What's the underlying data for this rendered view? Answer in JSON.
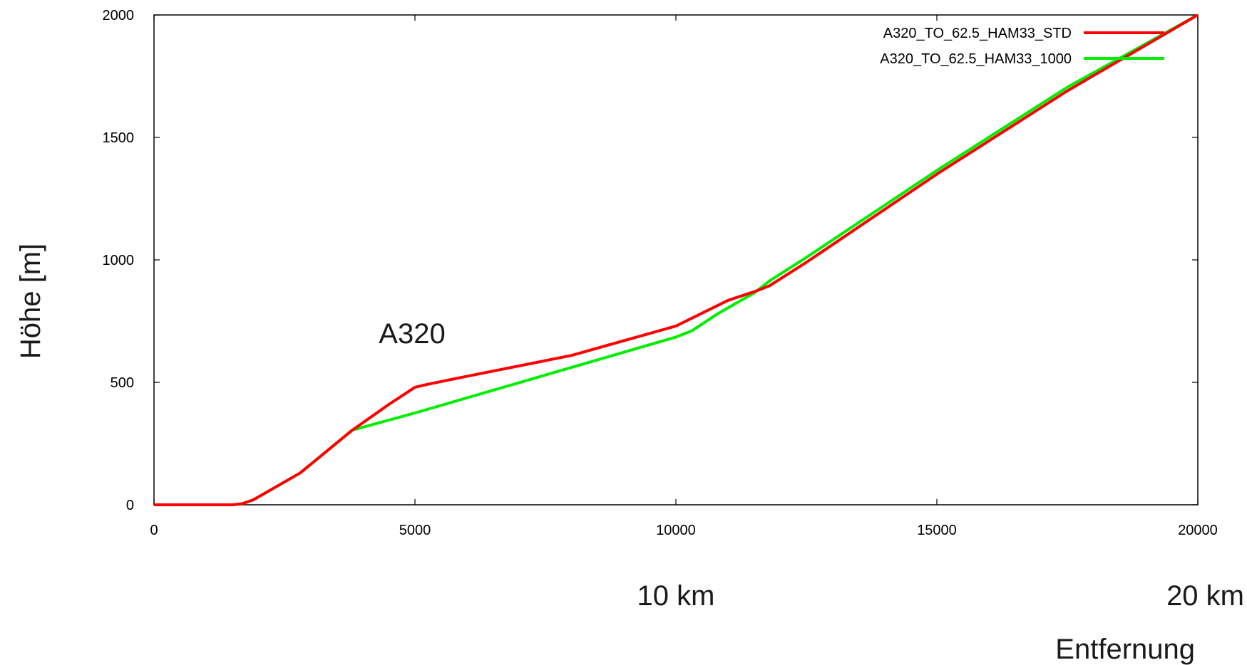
{
  "chart_data": {
    "type": "line",
    "xlabel": "Entfernung",
    "ylabel": "Höhe [m]",
    "xlim": [
      0,
      20000
    ],
    "ylim": [
      0,
      2000
    ],
    "x_ticks": [
      0,
      5000,
      10000,
      15000,
      20000
    ],
    "x_tick_labels": [
      "0",
      "5000",
      "10000",
      "15000",
      "20000"
    ],
    "y_ticks": [
      0,
      500,
      1000,
      1500,
      2000
    ],
    "y_tick_labels": [
      "0",
      "500",
      "1000",
      "1500",
      "2000"
    ],
    "km_labels": [
      {
        "x": 10000,
        "text": "10 km"
      },
      {
        "x": 20000,
        "text": "20 km"
      }
    ],
    "annotation": {
      "x": 5000,
      "y": 700,
      "text": "A320"
    },
    "legend_position": "top-right",
    "series": [
      {
        "name": "A320_TO_62.5_HAM33_STD",
        "color": "#ff0000",
        "points": [
          [
            0,
            0
          ],
          [
            1500,
            0
          ],
          [
            1700,
            5
          ],
          [
            1900,
            20
          ],
          [
            2800,
            130
          ],
          [
            3800,
            305
          ],
          [
            4500,
            410
          ],
          [
            5000,
            480
          ],
          [
            5200,
            490
          ],
          [
            6000,
            525
          ],
          [
            8000,
            610
          ],
          [
            10000,
            730
          ],
          [
            11000,
            835
          ],
          [
            11500,
            870
          ],
          [
            11800,
            895
          ],
          [
            12500,
            990
          ],
          [
            15000,
            1350
          ],
          [
            17500,
            1690
          ],
          [
            20000,
            2000
          ]
        ]
      },
      {
        "name": "A320_TO_62.5_HAM33_1000",
        "color": "#00ee00",
        "points": [
          [
            0,
            0
          ],
          [
            1500,
            0
          ],
          [
            1700,
            5
          ],
          [
            1900,
            20
          ],
          [
            2800,
            130
          ],
          [
            3800,
            305
          ],
          [
            5000,
            375
          ],
          [
            7500,
            530
          ],
          [
            10000,
            685
          ],
          [
            10300,
            710
          ],
          [
            10800,
            780
          ],
          [
            11500,
            865
          ],
          [
            11800,
            915
          ],
          [
            12500,
            1010
          ],
          [
            15000,
            1365
          ],
          [
            17500,
            1705
          ],
          [
            20000,
            2000
          ]
        ]
      }
    ]
  }
}
